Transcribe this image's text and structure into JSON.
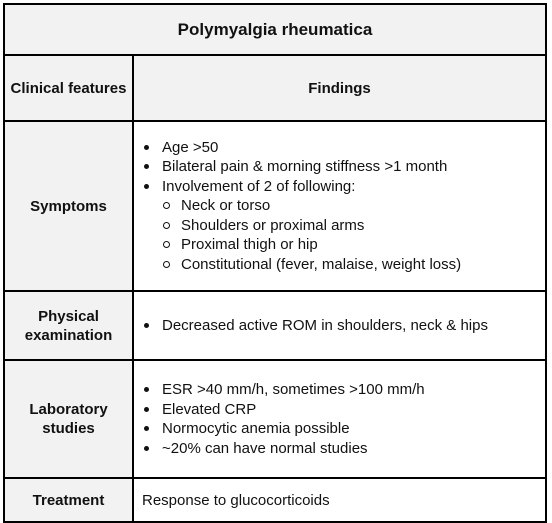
{
  "title": "Polymyalgia rheumatica",
  "header": {
    "col1": "Clinical features",
    "col2": "Findings"
  },
  "rows": {
    "symptoms": {
      "label": "Symptoms",
      "items": [
        "Age >50",
        "Bilateral pain & morning stiffness >1 month",
        "Involvement of 2 of following:"
      ],
      "subitems": [
        "Neck or torso",
        "Shoulders or proximal arms",
        "Proximal thigh or hip",
        "Constitutional (fever, malaise, weight loss)"
      ]
    },
    "physical": {
      "label": "Physical examination",
      "items": [
        "Decreased active ROM in shoulders, neck & hips"
      ]
    },
    "laboratory": {
      "label": "Laboratory studies",
      "items": [
        "ESR >40 mm/h, sometimes >100 mm/h",
        "Elevated CRP",
        "Normocytic anemia possible",
        "~20% can have normal studies"
      ]
    },
    "treatment": {
      "label": "Treatment",
      "text": "Response to glucocorticoids"
    }
  }
}
